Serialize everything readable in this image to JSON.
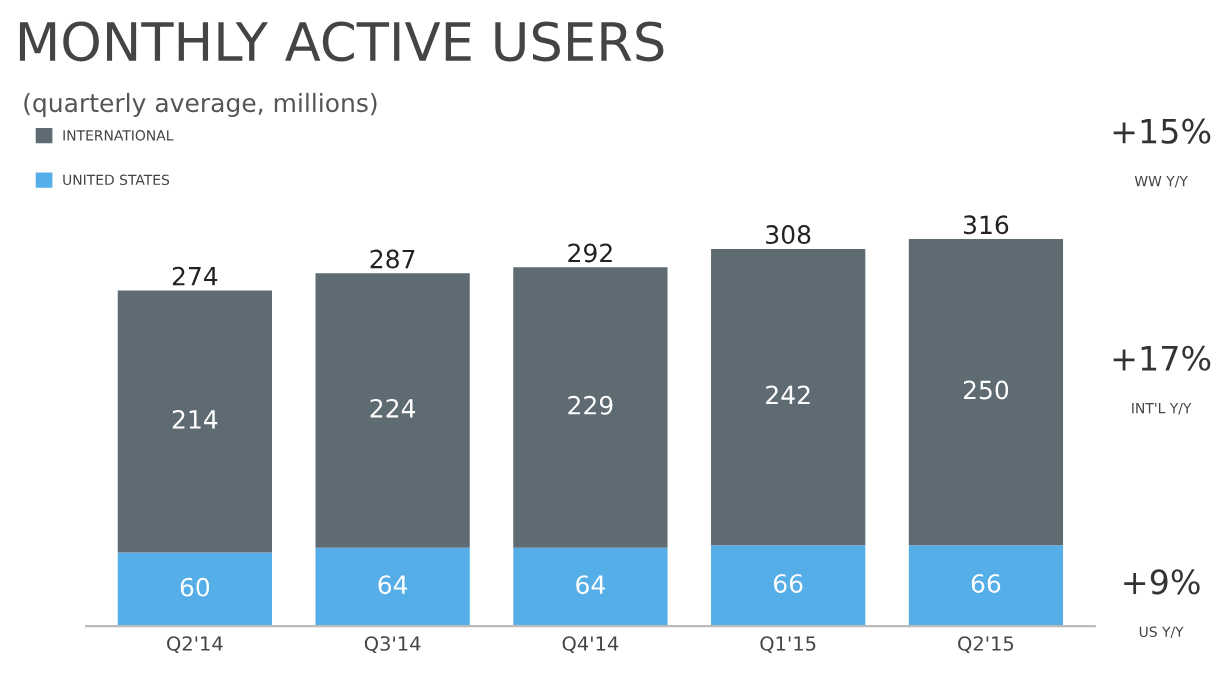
{
  "chart_data": {
    "type": "bar",
    "title": "MONTHLY ACTIVE USERS",
    "subtitle": "(quarterly average, millions)",
    "categories": [
      "Q2'14",
      "Q3'14",
      "Q4'14",
      "Q1'15",
      "Q2'15"
    ],
    "stacked": true,
    "series": [
      {
        "name": "UNITED STATES",
        "color": "#55aee8",
        "values": [
          60,
          64,
          64,
          66,
          66
        ]
      },
      {
        "name": "INTERNATIONAL",
        "color": "#5f6b73",
        "values": [
          214,
          224,
          229,
          242,
          250
        ]
      }
    ],
    "data_labels": true,
    "totals": [
      "274",
      "287",
      "292",
      "308",
      "316"
    ],
    "legend": "top left",
    "grid": false,
    "annotations": [
      "+15%",
      "WW Y/Y",
      "+17%",
      "INT'L Y/Y",
      "+9%",
      "US Y/Y"
    ]
  }
}
